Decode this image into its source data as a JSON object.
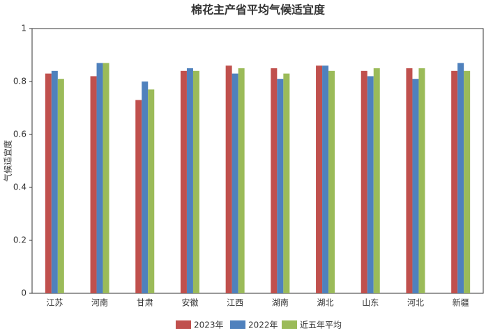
{
  "chart_data": {
    "type": "bar",
    "title": "棉花主产省平均气候适宜度",
    "y_label": "气候适宜度",
    "categories": [
      "江苏",
      "河南",
      "甘肃",
      "安徽",
      "江西",
      "湖南",
      "湖北",
      "山东",
      "河北",
      "新疆"
    ],
    "series": [
      {
        "name": "2023年",
        "color": "#c0504d",
        "values": [
          0.83,
          0.82,
          0.73,
          0.84,
          0.86,
          0.85,
          0.86,
          0.84,
          0.85,
          0.84
        ]
      },
      {
        "name": "2022年",
        "color": "#4f81bd",
        "values": [
          0.84,
          0.87,
          0.8,
          0.85,
          0.83,
          0.81,
          0.86,
          0.82,
          0.81,
          0.87
        ]
      },
      {
        "name": "近五年平均",
        "color": "#9bbb59",
        "values": [
          0.81,
          0.87,
          0.77,
          0.84,
          0.85,
          0.83,
          0.84,
          0.85,
          0.85,
          0.84
        ]
      }
    ],
    "ylim": [
      0,
      1
    ],
    "yticks": [
      0,
      0.2,
      0.4,
      0.6,
      0.8,
      1
    ],
    "grid": false,
    "legend": "bottom"
  }
}
